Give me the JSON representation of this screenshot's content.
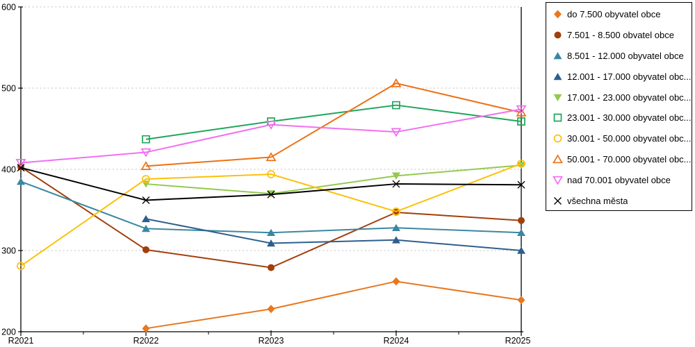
{
  "chart_data": {
    "type": "line",
    "x_categories": [
      "R2021",
      "R2022",
      "R2023",
      "R2024",
      "R2025"
    ],
    "ylim": [
      200,
      600
    ],
    "yticks": [
      200,
      300,
      400,
      500,
      600
    ],
    "grid": "horizontal-dotted",
    "legend_position": "right-box",
    "series": [
      {
        "label": "do 7.500 obyvatel obce",
        "color": "#E8771E",
        "marker": "diamond",
        "marker_style": "filled",
        "values": [
          null,
          204,
          228,
          262,
          239
        ]
      },
      {
        "label": "7.501 - 8.500 obvatel obce",
        "color": "#A23F0B",
        "marker": "circle",
        "marker_style": "filled",
        "values": [
          403,
          301,
          279,
          347,
          337
        ]
      },
      {
        "label": "8.501 - 12.000 obyvatel obce",
        "color": "#3B87A1",
        "marker": "triangle-up",
        "marker_style": "filled",
        "values": [
          385,
          327,
          322,
          328,
          322
        ]
      },
      {
        "label": "12.001 - 17.000 obyvatel obc...",
        "color": "#2E5F8C",
        "marker": "triangle-up",
        "marker_style": "filled",
        "values": [
          null,
          339,
          309,
          313,
          300
        ]
      },
      {
        "label": "17.001 - 23.000 obyvatel obc...",
        "color": "#94C94F",
        "marker": "triangle-down",
        "marker_style": "filled",
        "values": [
          null,
          382,
          370,
          392,
          405
        ]
      },
      {
        "label": "23.001 - 30.000 obyvatel obc...",
        "color": "#1EA55C",
        "marker": "square",
        "marker_style": "open",
        "values": [
          null,
          437,
          459,
          479,
          459
        ]
      },
      {
        "label": "30.001 - 50.000 obyvatel obc...",
        "color": "#FCC00A",
        "marker": "circle",
        "marker_style": "open",
        "values": [
          281,
          388,
          394,
          348,
          407
        ]
      },
      {
        "label": "50.001 - 70.000 obyvatel obc...",
        "color": "#EC7114",
        "marker": "triangle-up",
        "marker_style": "open",
        "values": [
          null,
          404,
          415,
          506,
          470
        ]
      },
      {
        "label": "nad 70.001 obyvatel obce",
        "color": "#F16FF0",
        "marker": "triangle-down",
        "marker_style": "open",
        "values": [
          408,
          421,
          455,
          446,
          474
        ]
      },
      {
        "label": "všechna města",
        "color": "#000000",
        "marker": "x-cross",
        "marker_style": "line",
        "values": [
          402,
          362,
          369,
          382,
          381
        ]
      }
    ]
  },
  "colors": {
    "background": "#FFFFFF",
    "grid": "#BFBFBF",
    "axis": "#000000",
    "text": "#000000"
  }
}
